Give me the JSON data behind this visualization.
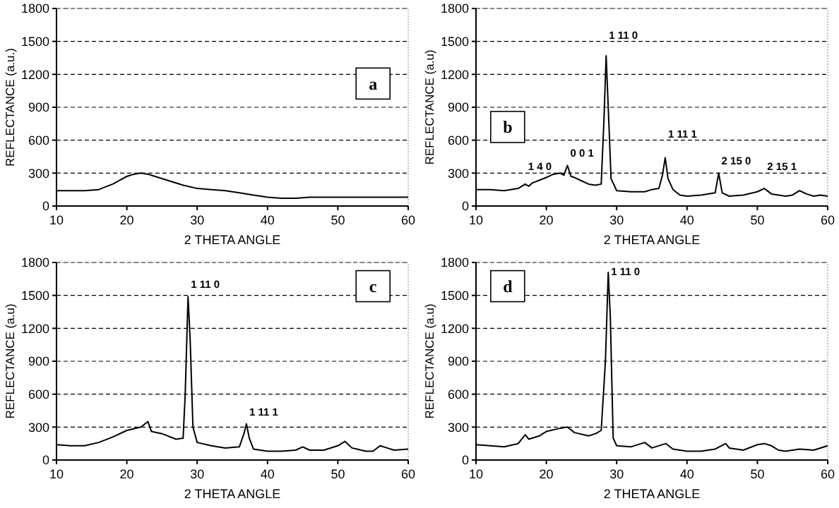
{
  "chart_data": [
    {
      "type": "line",
      "xlabel": "2 THETA ANGLE",
      "ylabel": "REFLECTANCE (a.u.)",
      "xlim": [
        10,
        60
      ],
      "ylim": [
        0,
        1800
      ],
      "xticks": [
        10,
        20,
        30,
        40,
        50,
        60
      ],
      "yticks": [
        0,
        300,
        600,
        900,
        1200,
        1500,
        1800
      ],
      "grid": "y",
      "line_style": "solid",
      "annotations": [
        "a"
      ],
      "series": [
        {
          "color": "#000000",
          "x": [
            10,
            12,
            14,
            16,
            18,
            20,
            21,
            22,
            23,
            24,
            26,
            28,
            30,
            32,
            34,
            36,
            38,
            40,
            42,
            44,
            46,
            48,
            50,
            52,
            54,
            56,
            58,
            60
          ],
          "values": [
            140,
            140,
            140,
            150,
            200,
            270,
            290,
            300,
            290,
            270,
            230,
            190,
            160,
            150,
            140,
            120,
            100,
            80,
            70,
            70,
            80,
            80,
            80,
            80,
            80,
            80,
            80,
            80
          ]
        }
      ]
    },
    {
      "type": "line",
      "xlabel": "2 THETA ANGLE",
      "ylabel": "REFLECTANCE (a.u)",
      "xlim": [
        10,
        60
      ],
      "ylim": [
        0,
        1800
      ],
      "xticks": [
        10,
        20,
        30,
        40,
        50,
        60
      ],
      "yticks": [
        0,
        300,
        600,
        900,
        1200,
        1500,
        1800
      ],
      "grid": "y",
      "line_style": "solid",
      "annotations": [
        "b",
        {
          "text": "1 4 0",
          "x": 17,
          "y": 200
        },
        {
          "text": "0 0 1",
          "x": 23,
          "y": 370
        },
        {
          "text": "1 11 0",
          "x": 28.5,
          "y": 1370
        },
        {
          "text": "1 11 1",
          "x": 36.9,
          "y": 440
        },
        {
          "text": "2 15 0",
          "x": 44.5,
          "y": 300
        },
        {
          "text": "2 15 1",
          "x": 51,
          "y": 160
        }
      ],
      "series": [
        {
          "color": "#000000",
          "x": [
            10,
            12,
            14,
            16,
            17,
            17.5,
            18,
            20,
            21,
            22,
            22.5,
            23,
            23.5,
            24,
            25,
            26,
            27,
            27.8,
            28.2,
            28.5,
            28.8,
            29.2,
            30,
            32,
            34,
            35,
            36,
            36.5,
            36.9,
            37.3,
            38,
            39,
            40,
            42,
            44,
            44.5,
            45,
            46,
            48,
            50,
            51,
            52,
            54,
            55,
            56,
            57,
            58,
            59,
            60
          ],
          "values": [
            150,
            150,
            140,
            160,
            200,
            180,
            210,
            260,
            290,
            300,
            280,
            370,
            270,
            260,
            230,
            200,
            190,
            200,
            800,
            1370,
            900,
            250,
            140,
            130,
            130,
            150,
            160,
            280,
            440,
            250,
            150,
            100,
            90,
            100,
            120,
            300,
            120,
            90,
            100,
            130,
            160,
            110,
            90,
            100,
            140,
            110,
            90,
            100,
            90
          ]
        }
      ]
    },
    {
      "type": "line",
      "xlabel": "2 THETA ANGLE",
      "ylabel": "REFLECTANCE (a.u)",
      "xlim": [
        10,
        60
      ],
      "ylim": [
        0,
        1800
      ],
      "xticks": [
        10,
        20,
        30,
        40,
        50,
        60
      ],
      "yticks": [
        0,
        300,
        600,
        900,
        1200,
        1500,
        1800
      ],
      "grid": "y",
      "line_style": "solid",
      "annotations": [
        "c",
        {
          "text": "1 11 0",
          "x": 28.7,
          "y": 1490
        },
        {
          "text": "1 11 1",
          "x": 37,
          "y": 330
        }
      ],
      "series": [
        {
          "color": "#000000",
          "x": [
            10,
            12,
            14,
            16,
            18,
            20,
            22,
            23,
            23.5,
            25,
            27,
            28,
            28.3,
            28.7,
            29,
            29.4,
            30,
            32,
            34,
            36,
            36.7,
            37,
            37.4,
            38,
            40,
            42,
            44,
            45,
            46,
            48,
            50,
            51,
            52,
            54,
            55,
            56,
            57,
            58,
            60
          ],
          "values": [
            140,
            130,
            130,
            160,
            210,
            270,
            300,
            350,
            260,
            240,
            190,
            200,
            600,
            1490,
            1100,
            300,
            160,
            130,
            110,
            120,
            250,
            330,
            200,
            100,
            80,
            80,
            90,
            120,
            90,
            90,
            130,
            170,
            110,
            80,
            80,
            130,
            110,
            90,
            100
          ]
        }
      ]
    },
    {
      "type": "line",
      "xlabel": "2 THETA ANGLE",
      "ylabel": "REFLECTANCE (a.u)",
      "xlim": [
        10,
        60
      ],
      "ylim": [
        0,
        1800
      ],
      "xticks": [
        10,
        20,
        30,
        40,
        50,
        60
      ],
      "yticks": [
        0,
        300,
        600,
        900,
        1200,
        1500,
        1800
      ],
      "grid": "y",
      "line_style": "solid",
      "annotations": [
        "d",
        {
          "text": "1 11 0",
          "x": 28.8,
          "y": 1710
        }
      ],
      "series": [
        {
          "color": "#000000",
          "x": [
            10,
            12,
            14,
            16,
            17,
            17.5,
            19,
            20,
            22,
            23,
            24,
            26,
            27,
            27.8,
            28.4,
            28.8,
            29.1,
            29.5,
            30,
            32,
            34,
            35,
            37,
            38,
            40,
            42,
            44,
            45.5,
            46,
            48,
            50,
            51,
            52,
            53,
            54,
            56,
            58,
            60
          ],
          "values": [
            140,
            130,
            120,
            150,
            230,
            190,
            220,
            260,
            290,
            300,
            250,
            220,
            240,
            270,
            900,
            1710,
            1300,
            200,
            130,
            120,
            160,
            110,
            150,
            100,
            80,
            80,
            100,
            150,
            110,
            90,
            140,
            150,
            130,
            90,
            80,
            100,
            90,
            130
          ]
        }
      ]
    }
  ]
}
